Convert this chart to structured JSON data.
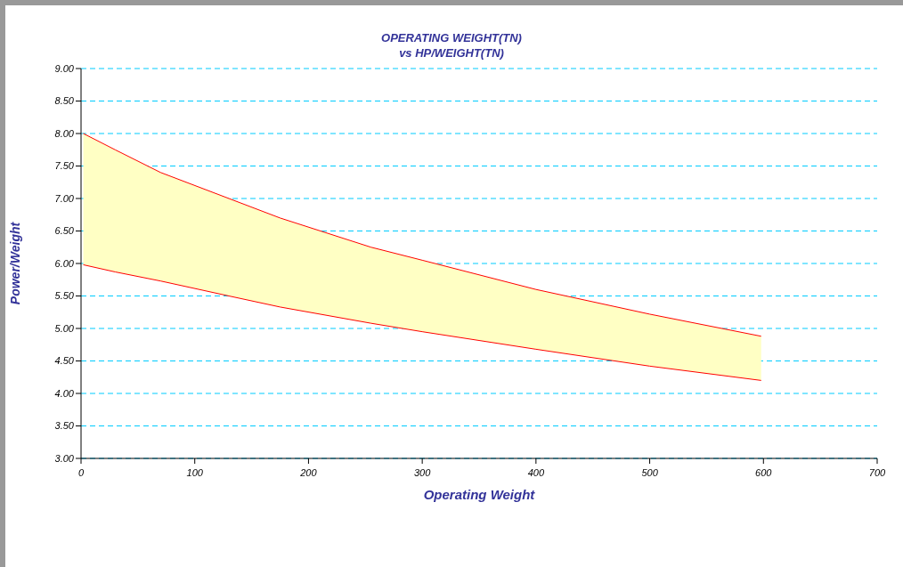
{
  "chart_data": {
    "type": "line",
    "title": "OPERATING WEIGHT(TN)",
    "subtitle": "vs HP/WEIGHT(TN)",
    "xlabel": "Operating Weight",
    "ylabel": "Power/Weight",
    "x": [
      2,
      30,
      70,
      130,
      175,
      255,
      300,
      400,
      500,
      598
    ],
    "series": [
      {
        "color": "#ff0000",
        "values": [
          8.0,
          7.75,
          7.4,
          7.0,
          6.7,
          6.25,
          6.05,
          5.6,
          5.22,
          4.88
        ],
        "lower": [
          5.98,
          5.87,
          5.73,
          5.5,
          5.33,
          5.08,
          4.95,
          4.68,
          4.42,
          4.2
        ],
        "upper": [
          8.0,
          7.75,
          7.4,
          7.0,
          6.7,
          6.25,
          6.05,
          5.6,
          5.22,
          4.88
        ]
      },
      {
        "color": "#ff0000",
        "values": [
          5.98,
          5.87,
          5.73,
          5.5,
          5.33,
          5.08,
          4.95,
          4.68,
          4.42,
          4.2
        ]
      }
    ],
    "xlim": [
      0,
      700
    ],
    "xticks": [
      0,
      100,
      200,
      300,
      400,
      500,
      600,
      700
    ],
    "ylim": [
      3,
      9
    ],
    "yticks": [
      {
        "value": 3,
        "label": "3.00"
      },
      {
        "value": 3.5,
        "label": "3.50"
      },
      {
        "value": 4,
        "label": "4.00"
      },
      {
        "value": 4.5,
        "label": "4.50"
      },
      {
        "value": 5,
        "label": "5.00"
      },
      {
        "value": 5.5,
        "label": "5.50"
      },
      {
        "value": 6,
        "label": "6.00"
      },
      {
        "value": 6.5,
        "label": "6.50"
      },
      {
        "value": 7,
        "label": "7.00"
      },
      {
        "value": 7.5,
        "label": "7.50"
      },
      {
        "value": 8,
        "label": "8.00"
      },
      {
        "value": 8.5,
        "label": "8.50"
      },
      {
        "value": 9,
        "label": "9.00"
      }
    ],
    "grid": "y"
  }
}
